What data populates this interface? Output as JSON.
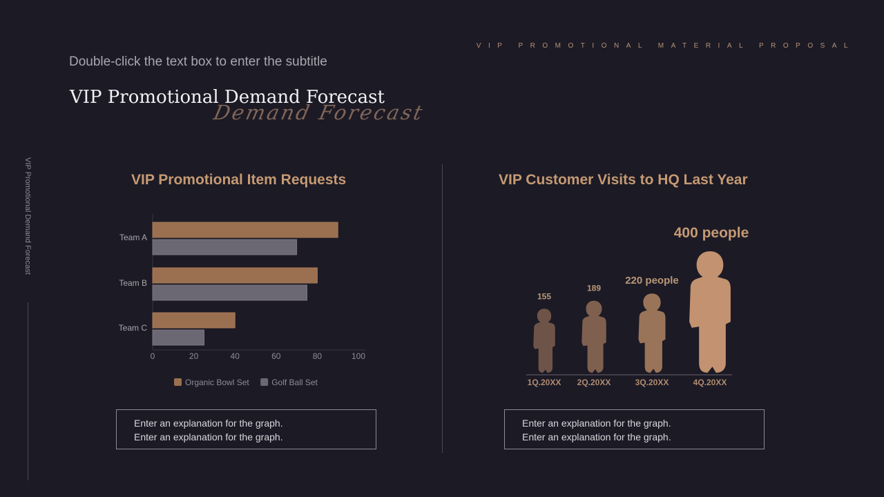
{
  "header": {
    "tagline": "VIP PROMOTIONAL MATERIAL PROPOSAL",
    "subtitle": "Double-click the text box to enter the subtitle",
    "title": "VIP Promotional Demand Forecast",
    "script_title": "Demand Forecast",
    "side_label": "VIP Promotional Demand Forecast"
  },
  "left_panel": {
    "explanation": [
      "Enter an explanation for the graph.",
      "Enter an explanation for the graph."
    ]
  },
  "right_panel": {
    "explanation": [
      "Enter an explanation for the graph.",
      "Enter an explanation for the graph."
    ]
  },
  "colors": {
    "background": "#1c1a25",
    "accent": "#c59a73",
    "series_organic": "#9a7050",
    "series_golf": "#6b6874"
  },
  "chart_data": [
    {
      "type": "bar",
      "orientation": "horizontal",
      "title": "VIP Promotional Item Requests",
      "categories": [
        "Team A",
        "Team B",
        "Team C"
      ],
      "series": [
        {
          "name": "Organic Bowl Set",
          "values": [
            90,
            80,
            40
          ],
          "color": "#9a7050"
        },
        {
          "name": "Golf Ball Set",
          "values": [
            70,
            75,
            25
          ],
          "color": "#6b6874"
        }
      ],
      "xlim": [
        0,
        100
      ],
      "xticks": [
        "0",
        "20",
        "40",
        "60",
        "80",
        "100"
      ],
      "legend": "bottom",
      "grid": false
    },
    {
      "type": "bar",
      "style": "pictogram-person",
      "title": "VIP Customer Visits to HQ Last Year",
      "categories": [
        "1Q.20XX",
        "2Q.20XX",
        "3Q.20XX",
        "4Q.20XX"
      ],
      "values": [
        155,
        189,
        220,
        400
      ],
      "labels": [
        "155",
        "189",
        "220 people",
        "400 people"
      ],
      "colors": [
        "#6e5448",
        "#7f604f",
        "#9a7459",
        "#c39270"
      ]
    }
  ]
}
